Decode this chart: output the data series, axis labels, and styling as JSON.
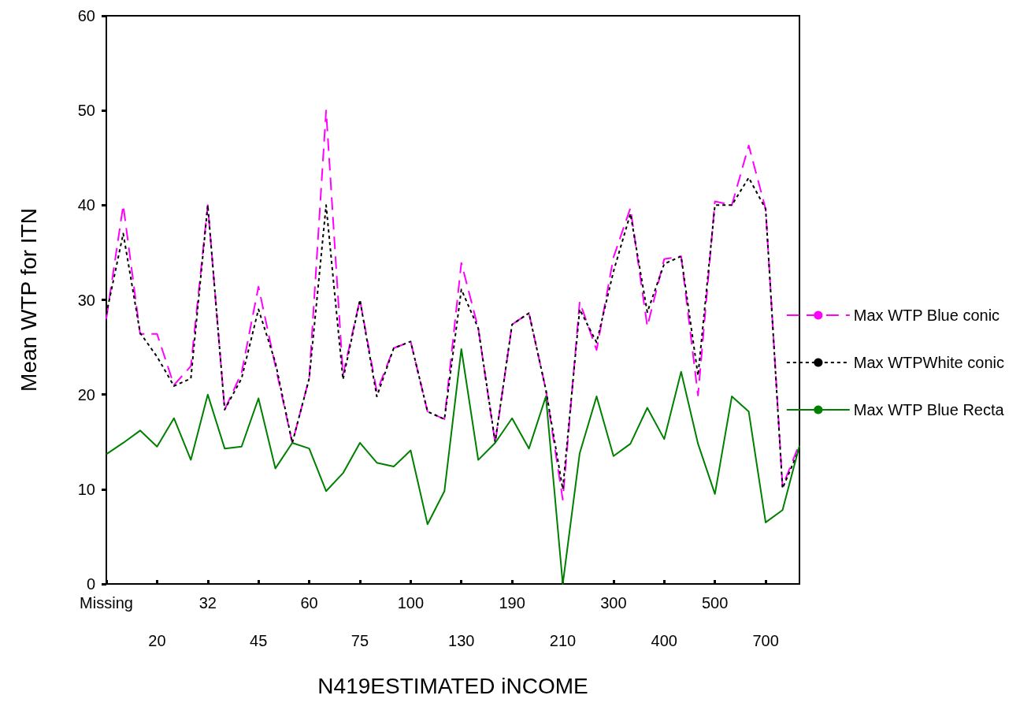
{
  "chart_data": {
    "type": "line",
    "xlabel": "N419ESTIMATED iNCOME",
    "ylabel": "Mean WTP for ITN",
    "categories": [
      "Missing",
      null,
      null,
      "20",
      null,
      null,
      "32",
      null,
      null,
      "45",
      null,
      null,
      "60",
      null,
      null,
      "75",
      null,
      null,
      "100",
      null,
      null,
      "130",
      null,
      null,
      "190",
      null,
      null,
      "210",
      null,
      null,
      "300",
      null,
      null,
      "400",
      null,
      null,
      "500",
      null,
      null,
      "700",
      null,
      null
    ],
    "series": [
      {
        "name": "Max WTP Blue conic",
        "color": "#ff00ff",
        "line_style": "dashed",
        "values": [
          28,
          40,
          26.4,
          26.4,
          21,
          23,
          40,
          18.4,
          22.3,
          31.4,
          23,
          14.9,
          21.7,
          50,
          22.1,
          30,
          20.3,
          24.9,
          25.6,
          18.2,
          17.4,
          33.9,
          27,
          14.9,
          27.4,
          28.6,
          20.5,
          8.9,
          29.8,
          24.7,
          34.5,
          39.7,
          27.2,
          34.3,
          34.6,
          19.9,
          40.4,
          40,
          46.3,
          39.6,
          10.3,
          14.8
        ]
      },
      {
        "name": "Max WTPWhite conic",
        "color": "#000000",
        "line_style": "dotted",
        "values": [
          28.5,
          37,
          26.5,
          24,
          20.9,
          21.7,
          40,
          18.4,
          21.7,
          29,
          23.4,
          14.9,
          21.7,
          40,
          21.6,
          30,
          19.8,
          24.9,
          25.6,
          18.2,
          17.4,
          31.1,
          27,
          15,
          27.4,
          28.6,
          20.5,
          10,
          29,
          25.5,
          33,
          39.1,
          28.7,
          33.8,
          34.6,
          22,
          40,
          40,
          42.9,
          39.6,
          10.1,
          14.3
        ]
      },
      {
        "name": "Max WTP Blue Recta",
        "color": "#008000",
        "line_style": "solid",
        "values": [
          13.7,
          14.9,
          16.2,
          14.5,
          17.5,
          13.1,
          20,
          14.3,
          14.5,
          19.6,
          12.2,
          14.9,
          14.3,
          9.8,
          11.7,
          14.9,
          12.8,
          12.4,
          14.1,
          6.3,
          9.8,
          24.8,
          13.1,
          14.9,
          17.5,
          14.3,
          19.8,
          0,
          13.8,
          19.8,
          13.5,
          14.8,
          18.6,
          15.3,
          22.4,
          14.8,
          9.5,
          19.8,
          18.2,
          6.5,
          7.8,
          14.6
        ]
      }
    ],
    "ylim": [
      0,
      60
    ],
    "yticks": [
      0,
      10,
      20,
      30,
      40,
      50,
      60
    ],
    "grid": false,
    "legend": "right",
    "marker": "none"
  }
}
